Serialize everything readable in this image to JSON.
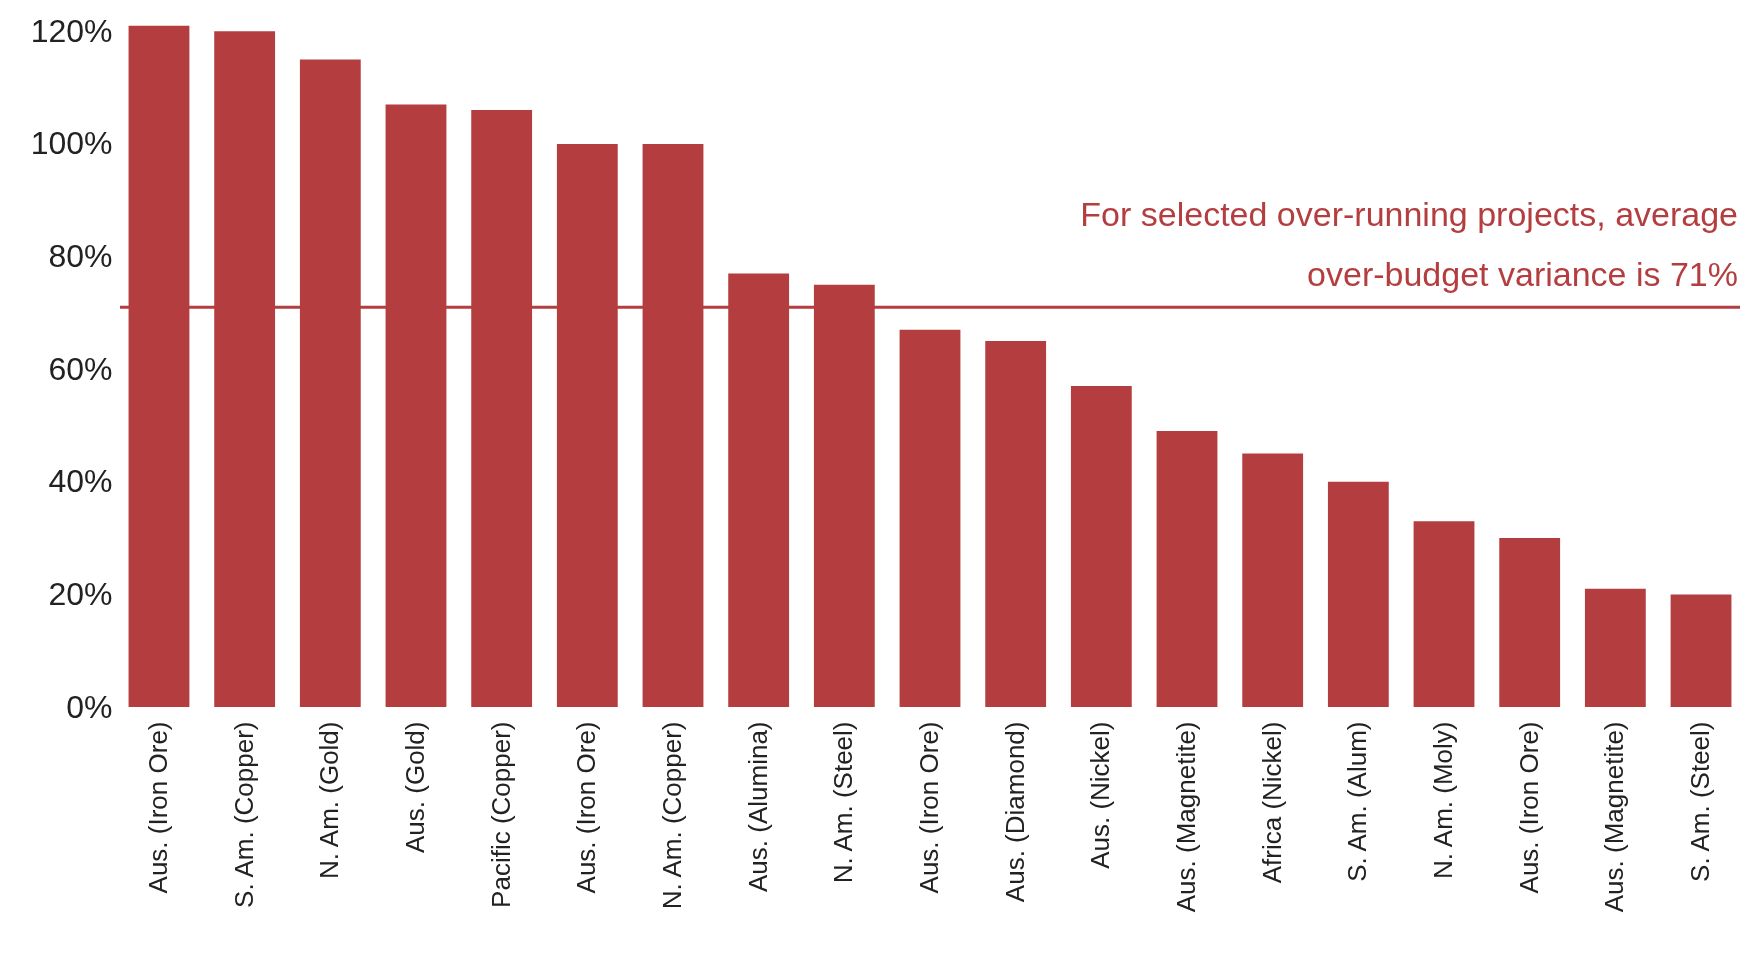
{
  "chart_data": {
    "type": "bar",
    "categories": [
      "Aus. (Iron Ore)",
      "S. Am. (Copper)",
      "N. Am. (Gold)",
      "Aus. (Gold)",
      "Pacific (Copper)",
      "Aus. (Iron Ore)",
      "N. Am. (Copper)",
      "Aus. (Alumina)",
      "N. Am. (Steel)",
      "Aus. (Iron Ore)",
      "Aus. (Diamond)",
      "Aus. (Nickel)",
      "Aus. (Magnetite)",
      "Africa (Nickel)",
      "S. Am. (Alum)",
      "N. Am. (Moly)",
      "Aus. (Iron Ore)",
      "Aus. (Magnetite)",
      "S. Am. (Steel)"
    ],
    "values": [
      121,
      120,
      115,
      107,
      106,
      100,
      100,
      77,
      75,
      67,
      65,
      57,
      49,
      45,
      40,
      33,
      30,
      21,
      20
    ],
    "color": "#b33d3f",
    "ylim": [
      0,
      122
    ],
    "yticks": [
      {
        "value": 0,
        "label": "0%"
      },
      {
        "value": 20,
        "label": "20%"
      },
      {
        "value": 40,
        "label": "40%"
      },
      {
        "value": 60,
        "label": "60%"
      },
      {
        "value": 80,
        "label": "80%"
      },
      {
        "value": 100,
        "label": "100%"
      },
      {
        "value": 120,
        "label": "120%"
      }
    ],
    "ref_lines": [
      {
        "axis": "y",
        "value": 71,
        "label": "For selected over-running projects, average\nover-budget variance is 71%",
        "color": "#b33d3f"
      }
    ],
    "grid": false
  }
}
